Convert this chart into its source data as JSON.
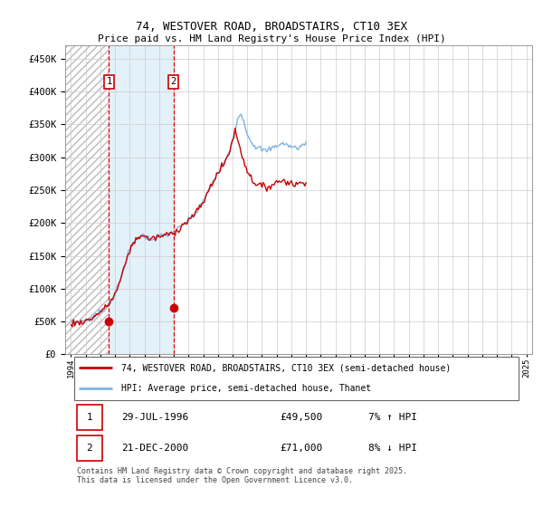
{
  "title": "74, WESTOVER ROAD, BROADSTAIRS, CT10 3EX",
  "subtitle": "Price paid vs. HM Land Registry's House Price Index (HPI)",
  "legend_line1": "74, WESTOVER ROAD, BROADSTAIRS, CT10 3EX (semi-detached house)",
  "legend_line2": "HPI: Average price, semi-detached house, Thanet",
  "transaction1_date": "29-JUL-1996",
  "transaction1_price": "£49,500",
  "transaction1_hpi": "7% ↑ HPI",
  "transaction2_date": "21-DEC-2000",
  "transaction2_price": "£71,000",
  "transaction2_hpi": "8% ↓ HPI",
  "footer": "Contains HM Land Registry data © Crown copyright and database right 2025.\nThis data is licensed under the Open Government Licence v3.0.",
  "hpi_color": "#7eb4e2",
  "price_color": "#cc0000",
  "marker_color": "#cc0000",
  "transaction1_year": 1996.58,
  "transaction2_year": 2000.97,
  "transaction1_price_val": 49500,
  "transaction2_price_val": 71000,
  "ylim": [
    0,
    470000
  ],
  "yticks": [
    0,
    50000,
    100000,
    150000,
    200000,
    250000,
    300000,
    350000,
    400000,
    450000
  ],
  "xlim_left": 1993.6,
  "xlim_right": 2025.4,
  "hpi_data": [
    48500,
    48700,
    49000,
    49200,
    49100,
    49300,
    49600,
    49900,
    50200,
    50500,
    51000,
    51500,
    52000,
    52500,
    53000,
    53800,
    54500,
    55500,
    56800,
    58200,
    59500,
    61000,
    62500,
    64000,
    65500,
    67000,
    68500,
    70000,
    71800,
    73500,
    75500,
    78000,
    80500,
    83000,
    86000,
    89500,
    93000,
    97000,
    101000,
    106000,
    111000,
    117000,
    123000,
    130000,
    137000,
    143000,
    149000,
    154000,
    159000,
    163000,
    166000,
    169000,
    172000,
    175000,
    177000,
    179000,
    180000,
    181000,
    181500,
    181000,
    180000,
    179000,
    178000,
    177000,
    176500,
    176000,
    176500,
    177000,
    177500,
    178000,
    178500,
    179000,
    179500,
    180000,
    180500,
    181000,
    181500,
    182000,
    182500,
    183000,
    183500,
    184000,
    184500,
    185000,
    186000,
    187000,
    188500,
    190000,
    191500,
    193000,
    195000,
    197000,
    198500,
    200000,
    201500,
    203000,
    204500,
    206000,
    208000,
    210000,
    212000,
    214000,
    216000,
    218500,
    221000,
    223500,
    226000,
    229000,
    232000,
    236000,
    240000,
    244000,
    248000,
    252000,
    256000,
    260000,
    264000,
    267000,
    270000,
    273000,
    276000,
    279000,
    282000,
    285000,
    288000,
    291000,
    294500,
    298000,
    302000,
    307000,
    313000,
    320000,
    327000,
    334000,
    342000,
    350000,
    358000,
    364000,
    368000,
    365000,
    360000,
    355000,
    349000,
    343000,
    337000,
    332000,
    328000,
    325000,
    322000,
    320000,
    318000,
    316000,
    315000,
    314000,
    314000,
    313000,
    312000,
    311000,
    310000,
    310000,
    310000,
    311000,
    312000,
    313000,
    314000,
    315000,
    316000,
    317000,
    318000,
    319000,
    319500,
    320000,
    320500,
    321000,
    321000,
    320000,
    319000,
    318000,
    318000,
    317000,
    316000,
    315000,
    315000,
    315000,
    315000,
    315000,
    315500,
    316000,
    317000,
    318000,
    319000,
    320000,
    321000
  ],
  "price_data": [
    47000,
    47500,
    47800,
    48100,
    47900,
    48200,
    48500,
    48800,
    49100,
    49500,
    50000,
    50400,
    51000,
    51600,
    52200,
    53000,
    53800,
    54900,
    56200,
    57600,
    59000,
    60500,
    62000,
    63500,
    65000,
    66500,
    68000,
    69500,
    71200,
    73000,
    75000,
    77500,
    80000,
    82500,
    85500,
    89000,
    92500,
    96500,
    100500,
    105500,
    110500,
    116500,
    122500,
    129500,
    136500,
    142500,
    148500,
    153500,
    158500,
    162500,
    165500,
    168500,
    171500,
    174500,
    176500,
    178500,
    179500,
    180500,
    181000,
    180500,
    179500,
    178500,
    177500,
    176500,
    176000,
    175500,
    176000,
    176500,
    177000,
    177500,
    178000,
    178500,
    179000,
    179500,
    180000,
    180500,
    181000,
    181500,
    182000,
    182500,
    183000,
    183500,
    184000,
    184500,
    185500,
    186500,
    188000,
    189500,
    191000,
    192500,
    194500,
    196500,
    198000,
    199500,
    201000,
    202500,
    204000,
    205500,
    207500,
    209500,
    211500,
    213500,
    215500,
    218000,
    220500,
    223000,
    225500,
    228500,
    231500,
    235500,
    239500,
    243500,
    247500,
    251500,
    255500,
    259500,
    263500,
    266500,
    269500,
    272500,
    275500,
    278500,
    281500,
    284500,
    287500,
    290500,
    294000,
    297500,
    301500,
    306500,
    312500,
    319500,
    326500,
    333500,
    341500,
    333000,
    328000,
    322000,
    315000,
    308000,
    302000,
    296000,
    290000,
    285000,
    280000,
    276000,
    272000,
    269000,
    266000,
    264000,
    262000,
    260000,
    259000,
    258000,
    258000,
    257000,
    256000,
    255000,
    254000,
    254000,
    254000,
    255000,
    256000,
    257000,
    258000,
    259000,
    260000,
    261000,
    262000,
    263000,
    263500,
    264000,
    264500,
    265000,
    265000,
    264000,
    263000,
    262000,
    262000,
    261000,
    260000,
    259000,
    259000,
    259000,
    259000,
    259000,
    259500,
    260000,
    261000,
    262000,
    263000,
    264000,
    265000
  ]
}
